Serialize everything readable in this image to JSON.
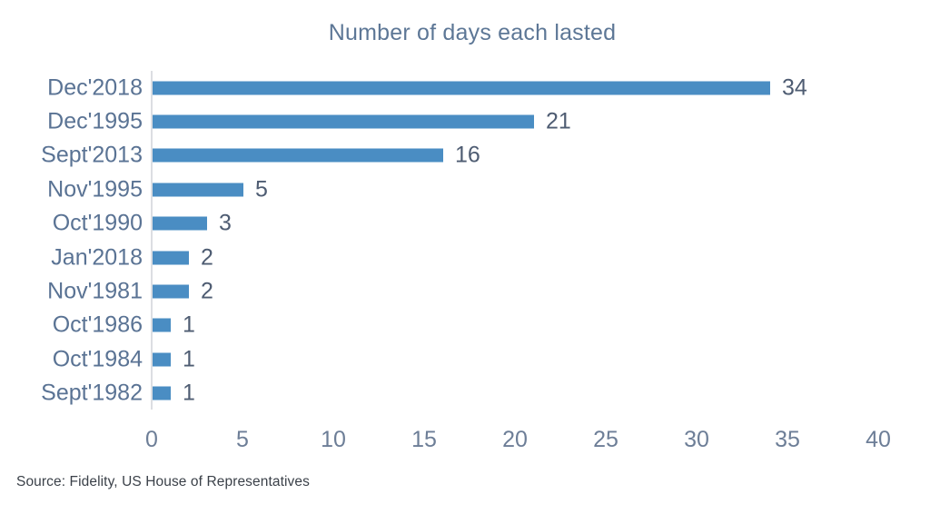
{
  "chart_data": {
    "type": "bar",
    "orientation": "horizontal",
    "title": "Number of days each lasted",
    "categories": [
      "Dec'2018",
      "Dec'1995",
      "Sept'2013",
      "Nov'1995",
      "Oct'1990",
      "Jan'2018",
      "Nov'1981",
      "Oct'1986",
      "Oct'1984",
      "Sept'1982"
    ],
    "values": [
      34,
      21,
      16,
      5,
      3,
      2,
      2,
      1,
      1,
      1
    ],
    "data_labels": [
      34,
      21,
      16,
      5,
      3,
      2,
      2,
      1,
      1,
      1
    ],
    "xticks": [
      0,
      5,
      10,
      15,
      20,
      25,
      30,
      35,
      40
    ],
    "xlim": [
      0,
      40
    ],
    "xlabel": "",
    "ylabel": "",
    "grid": false,
    "legend": false,
    "bar_color": "#4a8dc3",
    "source": "Source: Fidelity, US House of Representatives"
  },
  "colors": {
    "bar": "#4a8dc3",
    "title_text": "#5d7796",
    "category_text": "#5a7394",
    "value_text": "#4e5c72",
    "tick_text": "#6d7e97",
    "axis_line": "#dcdee2",
    "source_text": "#3b4149",
    "background": "#ffffff"
  }
}
